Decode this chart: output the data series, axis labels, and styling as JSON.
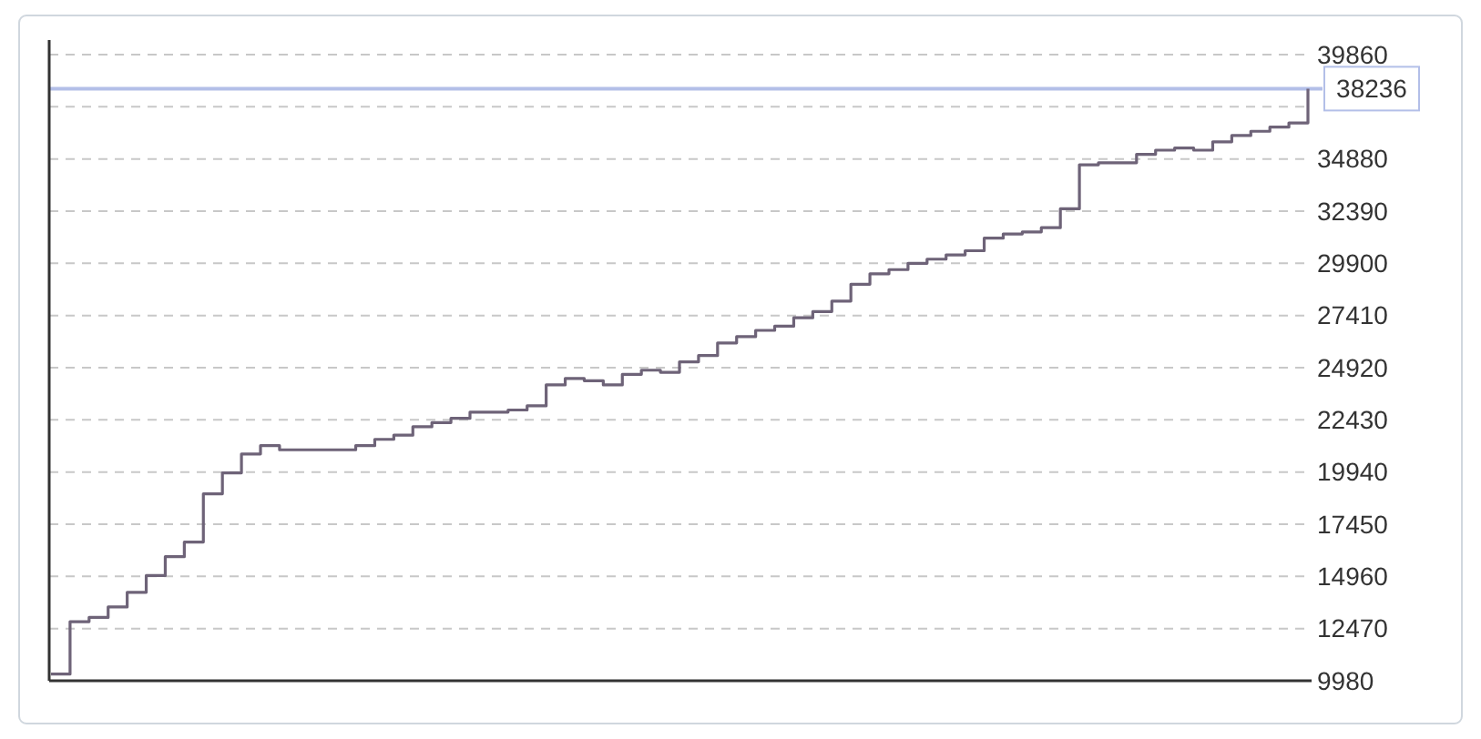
{
  "chart_data": {
    "type": "step",
    "categories": [
      null,
      null,
      null,
      null,
      null,
      null,
      null,
      null,
      null,
      null,
      null,
      null,
      null,
      null,
      null,
      null,
      null,
      null,
      null,
      null,
      null,
      null,
      null,
      null,
      null,
      null,
      null,
      null,
      null,
      null,
      null,
      null,
      null,
      null,
      null,
      null,
      null,
      null,
      null,
      null,
      null,
      null,
      null,
      null,
      null,
      null,
      null,
      null,
      null,
      null,
      null,
      null,
      null,
      null,
      null,
      null,
      null,
      null,
      null,
      null,
      null,
      null,
      null,
      null,
      null,
      null,
      null
    ],
    "series": [
      {
        "color": "#6e6378",
        "values": [
          10300,
          12800,
          13000,
          13500,
          14200,
          15000,
          15900,
          16600,
          18900,
          19900,
          20800,
          21200,
          21000,
          21000,
          21000,
          21000,
          21200,
          21500,
          21700,
          22100,
          22300,
          22500,
          22800,
          22800,
          22900,
          23100,
          24100,
          24400,
          24300,
          24100,
          24600,
          24800,
          24700,
          25200,
          25500,
          26100,
          26400,
          26700,
          26900,
          27300,
          27600,
          28100,
          28900,
          29400,
          29600,
          29900,
          30100,
          30300,
          30500,
          31100,
          31300,
          31400,
          31600,
          32500,
          34600,
          34700,
          34700,
          35100,
          35300,
          35400,
          35300,
          35700,
          36000,
          36200,
          36400,
          36600,
          38236
        ]
      }
    ],
    "ylim": [
      9980,
      39860
    ],
    "yticks": [
      9980,
      12470,
      14960,
      17450,
      19940,
      22430,
      24920,
      27410,
      29900,
      32390,
      34880,
      {
        "value": 37370,
        "label": null
      },
      39860
    ],
    "grid": "y",
    "tick_labels": "y",
    "ref_lines": [
      {
        "axis": "y",
        "value": 38236,
        "label": "38236",
        "color": "#b3bfe8"
      }
    ]
  }
}
